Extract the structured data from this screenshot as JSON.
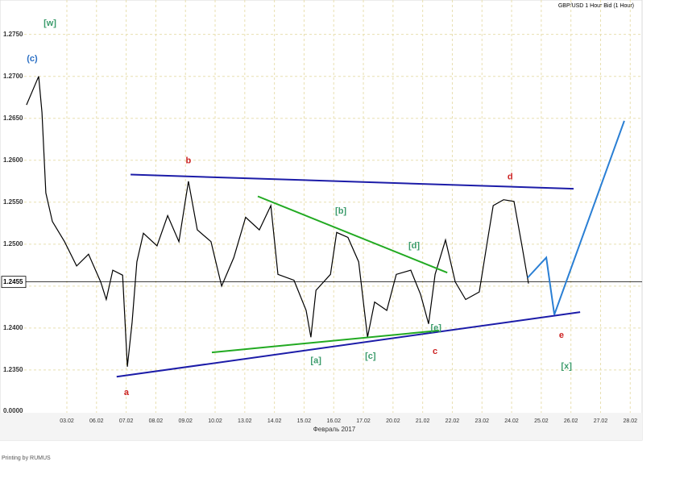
{
  "chart_data": {
    "type": "line",
    "title": "GBP/USD 1 Hour Bid (1 Hour)",
    "x_label": "Февраль 2017",
    "footer": "Printing by  RUMUS",
    "bottom_label": "0.0000",
    "current_price": {
      "value": 1.2455,
      "label": "1.2455"
    },
    "xlim": [
      -1.44,
      19.4
    ],
    "ylim": [
      1.2299,
      1.2791
    ],
    "grid": true,
    "xticks": [
      {
        "value": 0,
        "label": "03.02"
      },
      {
        "value": 1,
        "label": "06.02"
      },
      {
        "value": 2,
        "label": "07.02"
      },
      {
        "value": 3,
        "label": "08.02"
      },
      {
        "value": 4,
        "label": "09.02"
      },
      {
        "value": 5,
        "label": "10.02"
      },
      {
        "value": 6,
        "label": "13.02"
      },
      {
        "value": 7,
        "label": "14.02"
      },
      {
        "value": 8,
        "label": "15.02"
      },
      {
        "value": 9,
        "label": "16.02"
      },
      {
        "value": 10,
        "label": "17.02"
      },
      {
        "value": 11,
        "label": "20.02"
      },
      {
        "value": 12,
        "label": "21.02"
      },
      {
        "value": 13,
        "label": "22.02"
      },
      {
        "value": 14,
        "label": "23.02"
      },
      {
        "value": 15,
        "label": "24.02"
      },
      {
        "value": 16,
        "label": "25.02"
      },
      {
        "value": 17,
        "label": "26.02"
      },
      {
        "value": 18,
        "label": "27.02"
      },
      {
        "value": 19,
        "label": "28.02"
      }
    ],
    "yticks": [
      {
        "value": 1.235,
        "label": "1.2350"
      },
      {
        "value": 1.24,
        "label": "1.2400"
      },
      {
        "value": 1.245,
        "label": "1.2450"
      },
      {
        "value": 1.25,
        "label": "1.2500"
      },
      {
        "value": 1.255,
        "label": "1.2550"
      },
      {
        "value": 1.26,
        "label": "1.2600"
      },
      {
        "value": 1.265,
        "label": "1.2650"
      },
      {
        "value": 1.27,
        "label": "1.2700"
      },
      {
        "value": 1.275,
        "label": "1.2750"
      }
    ],
    "series": [
      {
        "name": "GBP/USD",
        "color": "#000000",
        "x": [
          -1.36,
          -0.95,
          -0.84,
          -0.71,
          -0.49,
          -0.08,
          0.33,
          0.73,
          1.14,
          1.33,
          1.55,
          1.88,
          2.04,
          2.2,
          2.36,
          2.58,
          3.04,
          3.4,
          3.78,
          4.1,
          4.4,
          4.86,
          5.22,
          5.63,
          6.03,
          6.49,
          6.88,
          7.12,
          7.66,
          8.07,
          8.23,
          8.4,
          8.89,
          9.1,
          9.48,
          9.84,
          10.14,
          10.38,
          10.79,
          11.11,
          11.6,
          11.93,
          12.2,
          12.42,
          12.77,
          13.1,
          13.45,
          13.91,
          14.18,
          14.38,
          14.73,
          15.08,
          15.35,
          15.57
        ],
        "values": [
          1.2666,
          1.27,
          1.2657,
          1.2561,
          1.2527,
          1.2503,
          1.2474,
          1.2488,
          1.2455,
          1.2434,
          1.2469,
          1.2463,
          1.2354,
          1.2407,
          1.2479,
          1.2513,
          1.2498,
          1.2534,
          1.2503,
          1.2575,
          1.2517,
          1.2503,
          1.245,
          1.2484,
          1.2532,
          1.2517,
          1.2546,
          1.2464,
          1.2457,
          1.2421,
          1.2389,
          1.2445,
          1.2464,
          1.2514,
          1.2508,
          1.2479,
          1.2389,
          1.2431,
          1.2421,
          1.2464,
          1.2469,
          1.244,
          1.2405,
          1.2464,
          1.2505,
          1.2455,
          1.2434,
          1.2443,
          1.2503,
          1.2546,
          1.2553,
          1.2551,
          1.2498,
          1.2453
        ]
      }
    ],
    "lines": [
      {
        "color": "#1c1ca8",
        "x": [
          2.15,
          17.09
        ],
        "y": [
          1.2583,
          1.2566
        ]
      },
      {
        "color": "#1c1ca8",
        "x": [
          1.68,
          17.31
        ],
        "y": [
          1.2342,
          1.2419
        ]
      },
      {
        "color": "#22aa22",
        "x": [
          6.44,
          12.83
        ],
        "y": [
          1.2557,
          1.2466
        ]
      },
      {
        "color": "#22aa22",
        "x": [
          4.89,
          12.55
        ],
        "y": [
          1.2371,
          1.2397
        ]
      },
      {
        "color": "#2a7fd4",
        "x": [
          15.54,
          16.17,
          16.44,
          18.8
        ],
        "y": [
          1.246,
          1.2484,
          1.2416,
          1.2647
        ]
      }
    ],
    "annotations": [
      {
        "text": "[w]",
        "color": "#3c9c6c",
        "x": -0.57,
        "y": 1.2763
      },
      {
        "text": "(c)",
        "color": "#2a6fc4",
        "x": -1.17,
        "y": 1.2721
      },
      {
        "text": "b",
        "color": "#cc2222",
        "x": 4.1,
        "y": 1.2599
      },
      {
        "text": "a",
        "color": "#cc2222",
        "x": 2.01,
        "y": 1.2323
      },
      {
        "text": "[b]",
        "color": "#3c9c6c",
        "x": 9.24,
        "y": 1.2539
      },
      {
        "text": "[d]",
        "color": "#3c9c6c",
        "x": 11.71,
        "y": 1.2498
      },
      {
        "text": "[a]",
        "color": "#3c9c6c",
        "x": 8.4,
        "y": 1.2361
      },
      {
        "text": "[c]",
        "color": "#3c9c6c",
        "x": 10.24,
        "y": 1.2366
      },
      {
        "text": "[e]",
        "color": "#3c9c6c",
        "x": 12.45,
        "y": 1.24
      },
      {
        "text": "c",
        "color": "#cc2222",
        "x": 12.42,
        "y": 1.2372
      },
      {
        "text": "d",
        "color": "#cc2222",
        "x": 14.95,
        "y": 1.258
      },
      {
        "text": "e",
        "color": "#cc2222",
        "x": 16.68,
        "y": 1.2391
      },
      {
        "text": "[x]",
        "color": "#3c9c6c",
        "x": 16.85,
        "y": 1.2354
      }
    ]
  }
}
